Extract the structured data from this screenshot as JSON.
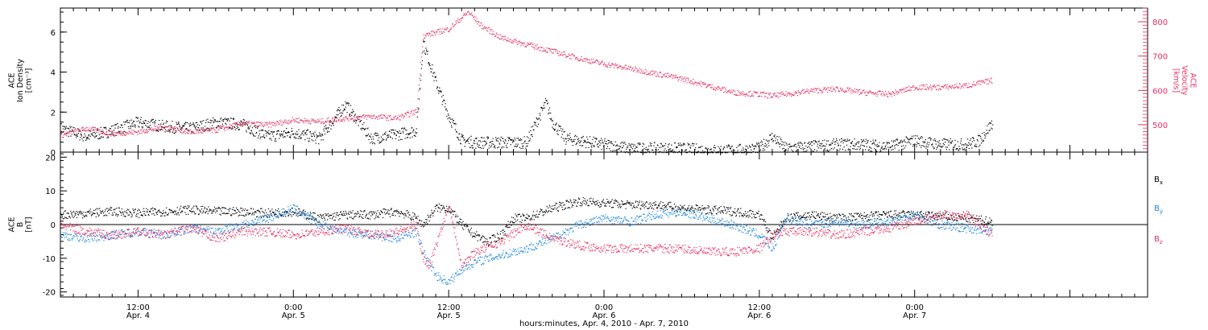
{
  "xaxis": {
    "title": "hours:minutes, Apr.  4, 2010 - Apr.  7, 2010",
    "range_hours": [
      6,
      90
    ],
    "ticks": [
      {
        "time": "12:00",
        "date": "Apr. 4",
        "hour": 12
      },
      {
        "time": "0:00",
        "date": "Apr. 5",
        "hour": 24
      },
      {
        "time": "12:00",
        "date": "Apr. 5",
        "hour": 36
      },
      {
        "time": "0:00",
        "date": "Apr. 6",
        "hour": 48
      },
      {
        "time": "12:00",
        "date": "Apr. 6",
        "hour": 60
      },
      {
        "time": "0:00",
        "date": "Apr. 7",
        "hour": 72
      }
    ]
  },
  "colors": {
    "density": "#000000",
    "velocity": "#e8305f",
    "bx": "#000000",
    "by": "#1f86e0",
    "bz": "#e8305f"
  },
  "chart_data": [
    {
      "type": "scatter",
      "panel": "top",
      "ylabel_lines": [
        "ACE",
        "Ion Density",
        "[cm⁻³]"
      ],
      "ylim": [
        0,
        7.2
      ],
      "yticks": [
        0,
        2,
        4,
        6
      ],
      "right_axis": {
        "ylabel_lines": [
          "ACE",
          "Velocity",
          "[km/s]"
        ],
        "ylim": [
          420,
          840
        ],
        "yticks": [
          500,
          600,
          700,
          800
        ]
      },
      "series": [
        {
          "key": "density",
          "x": [
            6,
            8,
            10,
            12,
            14,
            16,
            18,
            20,
            22,
            24,
            26,
            28,
            30,
            32,
            33.5,
            34,
            35,
            36,
            37,
            38,
            40,
            42,
            43.5,
            44,
            45,
            46,
            48,
            50,
            52,
            54,
            56,
            58,
            60,
            61,
            62,
            64,
            66,
            68,
            70,
            72,
            74,
            76,
            77,
            78
          ],
          "y": [
            1.2,
            0.8,
            1.1,
            1.5,
            1.3,
            1.2,
            1.5,
            1.4,
            0.8,
            1.0,
            0.7,
            2.4,
            0.7,
            0.9,
            1.1,
            5.5,
            3.5,
            1.8,
            0.6,
            0.5,
            0.5,
            0.5,
            2.5,
            1.5,
            0.7,
            0.6,
            0.4,
            0.2,
            0.2,
            0.2,
            0.1,
            0.1,
            0.2,
            0.8,
            0.2,
            0.3,
            0.4,
            0.4,
            0.3,
            0.6,
            0.4,
            0.4,
            0.6,
            1.5
          ]
        },
        {
          "key": "velocity",
          "axis": "right",
          "x": [
            6,
            8,
            10,
            12,
            14,
            16,
            18,
            20,
            22,
            24,
            26,
            28,
            30,
            32,
            33.5,
            34,
            36,
            37.5,
            38.5,
            40,
            42,
            44,
            46,
            48,
            50,
            52,
            54,
            56,
            58,
            60,
            61,
            62,
            64,
            66,
            68,
            70,
            72,
            74,
            76,
            78
          ],
          "y": [
            470,
            490,
            475,
            480,
            495,
            480,
            485,
            505,
            500,
            515,
            510,
            520,
            525,
            520,
            540,
            760,
            780,
            830,
            790,
            755,
            735,
            715,
            695,
            678,
            665,
            650,
            635,
            615,
            595,
            590,
            585,
            590,
            600,
            605,
            595,
            590,
            610,
            610,
            615,
            630
          ]
        }
      ]
    },
    {
      "type": "scatter",
      "panel": "bottom",
      "ylabel_lines": [
        "ACE",
        "B",
        "[nT]"
      ],
      "ylim": [
        -21.5,
        21.5
      ],
      "yticks": [
        -20,
        -10,
        0,
        10,
        20
      ],
      "legend": [
        "Bx",
        "By",
        "Bz"
      ],
      "series": [
        {
          "key": "bx",
          "name": "Bx",
          "x": [
            6,
            8,
            10,
            12,
            14,
            16,
            18,
            20,
            22,
            24,
            26,
            28,
            30,
            32,
            33.5,
            34,
            35,
            36,
            37,
            38,
            39,
            40,
            41,
            42,
            44,
            46,
            48,
            50,
            52,
            54,
            56,
            58,
            60,
            61,
            62,
            64,
            66,
            68,
            70,
            72,
            74,
            76,
            78
          ],
          "y": [
            3,
            3.5,
            4,
            3.5,
            4,
            4.5,
            4,
            4,
            3.5,
            4,
            2,
            3,
            3,
            4,
            2,
            0,
            5,
            5,
            0,
            -3,
            -5,
            -3,
            2,
            2,
            5,
            7,
            6.5,
            6,
            6,
            5,
            4.5,
            4,
            3,
            -4,
            2,
            3,
            2,
            2.5,
            3,
            3,
            2.5,
            2,
            1
          ]
        },
        {
          "key": "by",
          "name": "By",
          "x": [
            6,
            8,
            10,
            12,
            14,
            16,
            18,
            20,
            22,
            24,
            26,
            28,
            30,
            32,
            33.5,
            34,
            35,
            35.5,
            36,
            37,
            38,
            40,
            42,
            44,
            46,
            48,
            50,
            52,
            54,
            56,
            58,
            60,
            61,
            62,
            64,
            66,
            68,
            70,
            72,
            74,
            76,
            78
          ],
          "y": [
            -3,
            -4,
            -3,
            -2,
            -3,
            -1,
            -2,
            0,
            2,
            5,
            0,
            -2,
            -3,
            -4,
            -2,
            -8,
            -15,
            -16,
            -17,
            -13,
            -11,
            -9,
            -7,
            -4,
            0,
            2,
            1,
            3,
            4,
            2,
            0,
            -3,
            -7,
            2,
            0,
            1,
            0,
            1,
            3,
            0,
            -1,
            -2
          ]
        },
        {
          "key": "bz",
          "name": "Bz",
          "x": [
            6,
            8,
            10,
            12,
            14,
            16,
            18,
            20,
            22,
            24,
            26,
            28,
            30,
            32,
            33.5,
            34,
            34.5,
            35,
            36,
            37,
            38,
            40,
            42,
            44,
            46,
            48,
            50,
            52,
            54,
            56,
            58,
            60,
            61,
            62,
            64,
            66,
            68,
            70,
            72,
            74,
            76,
            78
          ],
          "y": [
            0,
            -2,
            -3,
            -2,
            -3,
            -1,
            -4,
            -2,
            -2,
            -3,
            -2,
            -1,
            -3,
            -2,
            0,
            -10,
            -12,
            -6,
            6,
            -12,
            -8,
            -5,
            0,
            -4,
            -6,
            -7,
            -7,
            -7,
            -7,
            -8,
            -8,
            -7,
            -3,
            -2,
            -2,
            -3,
            -2,
            -1,
            1,
            3,
            3,
            -3
          ]
        }
      ]
    }
  ]
}
